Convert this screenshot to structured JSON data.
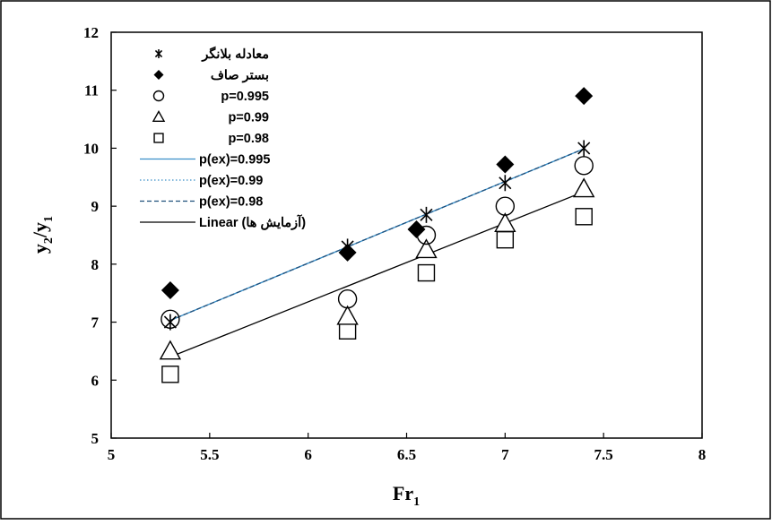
{
  "chart_data": {
    "type": "scatter",
    "title": "",
    "xlabel": "Fr",
    "xlabel_sub": "1",
    "ylabel": "y",
    "ylabel_sub_num": "2",
    "ylabel_slash": "/y",
    "ylabel_sub_den": "1",
    "xlim": [
      5,
      8
    ],
    "ylim": [
      5,
      12
    ],
    "x_ticks": [
      "5",
      "5.5",
      "6",
      "6.5",
      "7",
      "7.5",
      "8"
    ],
    "y_ticks": [
      "5",
      "6",
      "7",
      "8",
      "9",
      "10",
      "11",
      "12"
    ],
    "grid": false,
    "legend_position": "top-left",
    "series": [
      {
        "name": "معادله بلانگر",
        "marker": "asterisk",
        "color": "#000000",
        "x": [
          5.3,
          6.2,
          6.6,
          7.0,
          7.4
        ],
        "y": [
          7.0,
          8.3,
          8.85,
          9.4,
          10.0
        ]
      },
      {
        "name": "بستر صاف",
        "marker": "diamond",
        "color": "#000000",
        "x": [
          5.3,
          6.2,
          6.55,
          7.0,
          7.4
        ],
        "y": [
          7.55,
          8.2,
          8.6,
          9.72,
          10.9
        ]
      },
      {
        "name": "p=0.995",
        "marker": "circle",
        "color": "#000000",
        "x": [
          5.3,
          6.2,
          6.6,
          7.0,
          7.4
        ],
        "y": [
          7.05,
          7.4,
          8.5,
          9.0,
          9.7
        ]
      },
      {
        "name": "p=0.99",
        "marker": "triangle",
        "color": "#000000",
        "x": [
          5.3,
          6.2,
          6.6,
          7.0,
          7.4
        ],
        "y": [
          6.5,
          7.1,
          8.25,
          8.7,
          9.3
        ]
      },
      {
        "name": "p=0.98",
        "marker": "square",
        "color": "#000000",
        "x": [
          5.3,
          6.2,
          6.6,
          7.0,
          7.4
        ],
        "y": [
          6.1,
          6.85,
          7.85,
          8.42,
          8.82
        ]
      }
    ],
    "lines": [
      {
        "name": "p(ex)=0.995",
        "style": "solid",
        "color": "#3a8fc8",
        "x": [
          5.3,
          7.4
        ],
        "y": [
          7.03,
          9.99
        ]
      },
      {
        "name": "p(ex)=0.99",
        "style": "dotted",
        "color": "#3a8fc8",
        "x": [
          5.3,
          7.4
        ],
        "y": [
          7.03,
          9.99
        ]
      },
      {
        "name": "p(ex)=0.98",
        "style": "dashed",
        "color": "#1f4f7a",
        "x": [
          5.3,
          7.4
        ],
        "y": [
          7.03,
          9.99
        ]
      },
      {
        "name": "Linear (آزمایش ها)",
        "style": "solid",
        "color": "#000000",
        "x": [
          5.3,
          7.4
        ],
        "y": [
          6.4,
          9.25
        ]
      }
    ]
  }
}
